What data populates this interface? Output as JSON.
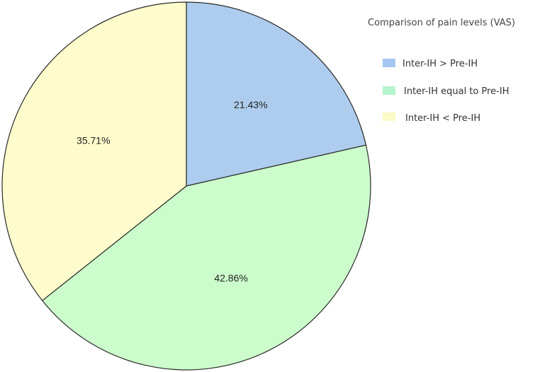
{
  "chart_data": {
    "type": "pie",
    "title": "Comparison of pain levels  (VAS)",
    "categories": [
      "Inter-IH > Pre-IH",
      "Inter-IH equal to Pre-IH",
      "Inter-IH < Pre-IH"
    ],
    "values": [
      21.43,
      42.86,
      35.71
    ],
    "labels": [
      "21.43%",
      "42.86%",
      "35.71%"
    ],
    "colors": [
      "#aecdee",
      "#ccfccc",
      "#fefccc"
    ],
    "legend_swatch_colors": [
      "#a6c6f2",
      "#b6f4cf",
      "#fafbc6"
    ],
    "legend_position": "top-right",
    "start_angle": "12 o'clock",
    "direction": "clockwise"
  }
}
